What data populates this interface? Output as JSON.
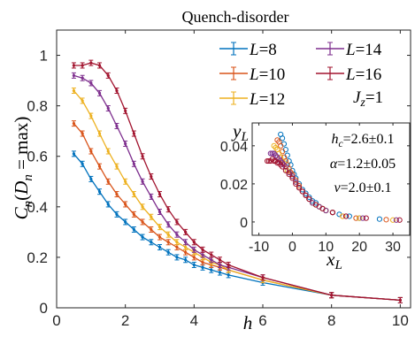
{
  "chart_data": [
    {
      "type": "line",
      "title": "Quench-disorder",
      "xlabel": "h",
      "ylabel": "C_n(D_n = max)",
      "xlim": [
        0,
        10.3
      ],
      "ylim": [
        0,
        1.1
      ],
      "xticks": [
        0,
        2,
        4,
        6,
        8,
        10
      ],
      "yticks": [
        0,
        0.2,
        0.4,
        0.6,
        0.8,
        1
      ],
      "grid": false,
      "legend_position": "top-right",
      "legend_note": "J_z=1",
      "x": [
        0.5,
        0.75,
        1,
        1.25,
        1.5,
        1.75,
        2,
        2.25,
        2.5,
        2.75,
        3,
        3.25,
        3.5,
        3.75,
        4,
        4.25,
        4.5,
        4.75,
        5,
        6,
        8,
        10
      ],
      "series": [
        {
          "name": "L=8",
          "color": "#0072bd",
          "values": [
            0.61,
            0.57,
            0.51,
            0.46,
            0.41,
            0.37,
            0.34,
            0.31,
            0.28,
            0.26,
            0.24,
            0.22,
            0.2,
            0.19,
            0.17,
            0.16,
            0.15,
            0.14,
            0.13,
            0.1,
            0.05,
            0.03
          ]
        },
        {
          "name": "L=10",
          "color": "#d95319",
          "values": [
            0.73,
            0.69,
            0.62,
            0.56,
            0.5,
            0.45,
            0.41,
            0.37,
            0.34,
            0.31,
            0.28,
            0.26,
            0.24,
            0.22,
            0.2,
            0.18,
            0.17,
            0.16,
            0.15,
            0.11,
            0.05,
            0.03
          ]
        },
        {
          "name": "L=12",
          "color": "#edb120",
          "values": [
            0.86,
            0.82,
            0.76,
            0.69,
            0.62,
            0.56,
            0.5,
            0.45,
            0.4,
            0.36,
            0.32,
            0.29,
            0.26,
            0.24,
            0.22,
            0.2,
            0.18,
            0.17,
            0.15,
            0.11,
            0.05,
            0.03
          ]
        },
        {
          "name": "L=14",
          "color": "#7e2f8e",
          "values": [
            0.92,
            0.91,
            0.89,
            0.85,
            0.79,
            0.72,
            0.65,
            0.57,
            0.5,
            0.44,
            0.38,
            0.33,
            0.29,
            0.26,
            0.23,
            0.21,
            0.19,
            0.17,
            0.16,
            0.12,
            0.05,
            0.03
          ]
        },
        {
          "name": "L=16",
          "color": "#a2142f",
          "values": [
            0.96,
            0.96,
            0.97,
            0.96,
            0.92,
            0.86,
            0.78,
            0.69,
            0.6,
            0.52,
            0.45,
            0.39,
            0.34,
            0.3,
            0.26,
            0.23,
            0.21,
            0.19,
            0.17,
            0.12,
            0.05,
            0.03
          ]
        }
      ]
    },
    {
      "type": "scatter",
      "xlabel": "x_L",
      "ylabel": "y_L",
      "xlim": [
        -12,
        35
      ],
      "ylim": [
        -0.007,
        0.052
      ],
      "xticks": [
        -10,
        0,
        10,
        20,
        30
      ],
      "xticklabels": [
        "-10",
        "0",
        "10",
        "20",
        "30"
      ],
      "yticks": [
        0,
        0.02,
        0.04
      ],
      "yticklabels": [
        "0",
        "0.02",
        "0.04"
      ],
      "annotations": [
        "h_c=2.6±0.1",
        "α=1.2±0.05",
        "ν=2.0±0.1"
      ],
      "series": [
        {
          "name": "L=8",
          "color": "#0072bd",
          "x": [
            -3.5,
            -3,
            -2.5,
            -2,
            -1.5,
            -1,
            -0.5,
            0,
            0.5,
            1,
            2,
            3,
            4,
            5,
            6,
            7,
            8,
            9,
            10,
            12,
            14,
            17,
            20,
            26
          ],
          "y": [
            0.046,
            0.044,
            0.041,
            0.038,
            0.035,
            0.032,
            0.03,
            0.027,
            0.025,
            0.023,
            0.02,
            0.017,
            0.015,
            0.013,
            0.011,
            0.01,
            0.008,
            0.007,
            0.006,
            0.005,
            0.004,
            0.003,
            0.002,
            0.0015
          ]
        },
        {
          "name": "L=10",
          "color": "#d95319",
          "x": [
            -4.5,
            -4,
            -3.5,
            -3,
            -2.5,
            -2,
            -1.5,
            -1,
            -0.5,
            0,
            1,
            2,
            3,
            4,
            5,
            6,
            7,
            8,
            9,
            10,
            12,
            15,
            19,
            28
          ],
          "y": [
            0.043,
            0.042,
            0.04,
            0.037,
            0.034,
            0.032,
            0.03,
            0.028,
            0.026,
            0.025,
            0.022,
            0.019,
            0.016,
            0.014,
            0.012,
            0.01,
            0.009,
            0.008,
            0.007,
            0.006,
            0.005,
            0.003,
            0.002,
            0.0012
          ]
        },
        {
          "name": "L=12",
          "color": "#edb120",
          "x": [
            -5.5,
            -5,
            -4.5,
            -4,
            -3.5,
            -3,
            -2.5,
            -2,
            -1.5,
            -1,
            0,
            1,
            2,
            3,
            4,
            5,
            6,
            7,
            8,
            10,
            12,
            15,
            20,
            30
          ],
          "y": [
            0.04,
            0.039,
            0.038,
            0.036,
            0.034,
            0.032,
            0.031,
            0.029,
            0.027,
            0.026,
            0.024,
            0.021,
            0.018,
            0.016,
            0.014,
            0.012,
            0.01,
            0.009,
            0.008,
            0.006,
            0.005,
            0.003,
            0.002,
            0.001
          ]
        },
        {
          "name": "L=14",
          "color": "#7e2f8e",
          "x": [
            -6.5,
            -6,
            -5.5,
            -5,
            -4.5,
            -4,
            -3.5,
            -3,
            -2.5,
            -2,
            -1,
            0,
            1,
            2,
            3,
            4,
            5,
            6,
            8,
            10,
            12,
            16,
            21,
            31
          ],
          "y": [
            0.036,
            0.036,
            0.036,
            0.035,
            0.034,
            0.033,
            0.032,
            0.031,
            0.03,
            0.029,
            0.026,
            0.024,
            0.021,
            0.018,
            0.016,
            0.014,
            0.012,
            0.01,
            0.008,
            0.006,
            0.005,
            0.003,
            0.002,
            0.001
          ]
        },
        {
          "name": "L=16",
          "color": "#a2142f",
          "x": [
            -7.5,
            -7,
            -6.5,
            -6,
            -5.5,
            -5,
            -4.5,
            -4,
            -3.5,
            -3,
            -2,
            -1,
            0,
            1,
            2,
            3,
            4,
            5,
            7,
            9,
            12,
            16,
            22,
            32
          ],
          "y": [
            0.032,
            0.032,
            0.032,
            0.033,
            0.032,
            0.032,
            0.031,
            0.031,
            0.03,
            0.029,
            0.027,
            0.025,
            0.023,
            0.02,
            0.018,
            0.016,
            0.014,
            0.012,
            0.009,
            0.007,
            0.005,
            0.003,
            0.002,
            0.001
          ]
        }
      ]
    }
  ]
}
